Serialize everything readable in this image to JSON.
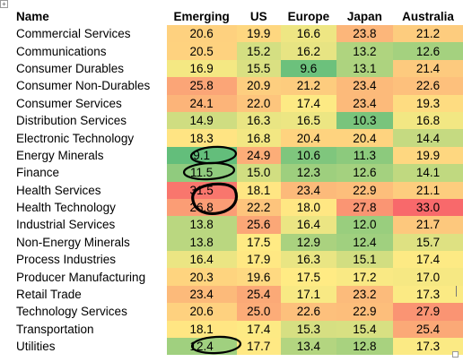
{
  "table": {
    "headers": [
      "Name",
      "Emerging",
      "US",
      "Europe",
      "Japan",
      "Australia"
    ],
    "rows": [
      {
        "name": "Commercial Services",
        "values": [
          "20.6",
          "19.9",
          "16.6",
          "23.8",
          "21.2"
        ]
      },
      {
        "name": "Communications",
        "values": [
          "20.5",
          "15.2",
          "16.2",
          "13.2",
          "12.6"
        ]
      },
      {
        "name": "Consumer Durables",
        "values": [
          "16.9",
          "15.5",
          "9.6",
          "13.1",
          "21.4"
        ]
      },
      {
        "name": "Consumer Non-Durables",
        "values": [
          "25.8",
          "20.9",
          "21.2",
          "23.4",
          "22.6"
        ]
      },
      {
        "name": "Consumer Services",
        "values": [
          "24.1",
          "22.0",
          "17.4",
          "23.4",
          "19.3"
        ]
      },
      {
        "name": "Distribution Services",
        "values": [
          "14.9",
          "16.3",
          "16.5",
          "10.3",
          "16.8"
        ]
      },
      {
        "name": "Electronic Technology",
        "values": [
          "18.3",
          "16.8",
          "20.4",
          "20.4",
          "14.4"
        ]
      },
      {
        "name": "Energy Minerals",
        "values": [
          "9.1",
          "24.9",
          "10.6",
          "11.3",
          "19.9"
        ]
      },
      {
        "name": "Finance",
        "values": [
          "11.5",
          "15.0",
          "12.3",
          "12.6",
          "14.1"
        ]
      },
      {
        "name": "Health Services",
        "values": [
          "31.5",
          "18.1",
          "23.4",
          "22.9",
          "21.1"
        ]
      },
      {
        "name": "Health Technology",
        "values": [
          "26.8",
          "22.2",
          "18.0",
          "27.8",
          "33.0"
        ]
      },
      {
        "name": "Industrial Services",
        "values": [
          "13.8",
          "25.6",
          "16.4",
          "12.0",
          "21.7"
        ]
      },
      {
        "name": "Non-Energy Minerals",
        "values": [
          "13.8",
          "17.5",
          "12.9",
          "12.4",
          "15.7"
        ]
      },
      {
        "name": "Process Industries",
        "values": [
          "16.4",
          "17.9",
          "16.3",
          "15.1",
          "17.4"
        ]
      },
      {
        "name": "Producer Manufacturing",
        "values": [
          "20.3",
          "19.6",
          "17.5",
          "17.2",
          "17.0"
        ]
      },
      {
        "name": "Retail Trade",
        "values": [
          "23.4",
          "25.4",
          "17.1",
          "23.2",
          "17.3"
        ]
      },
      {
        "name": "Technology Services",
        "values": [
          "20.6",
          "25.0",
          "22.6",
          "22.9",
          "27.9"
        ]
      },
      {
        "name": "Transportation",
        "values": [
          "18.1",
          "17.4",
          "15.3",
          "15.4",
          "25.4"
        ]
      },
      {
        "name": "Utilities",
        "values": [
          "12.4",
          "17.7",
          "13.4",
          "12.8",
          "17.3"
        ]
      }
    ]
  },
  "colors": {
    "low": "#63be7b",
    "mid": "#ffeb84",
    "high": "#f8696b",
    "annotation": "#000000"
  },
  "annotations": {
    "circled": [
      {
        "row": "Energy Minerals",
        "column": "Emerging"
      },
      {
        "row": "Finance",
        "column": "Emerging"
      },
      {
        "row": "Health Services",
        "column": "Emerging"
      },
      {
        "row": "Health Technology",
        "column": "Emerging"
      },
      {
        "row": "Utilities",
        "column": "Emerging"
      }
    ]
  }
}
